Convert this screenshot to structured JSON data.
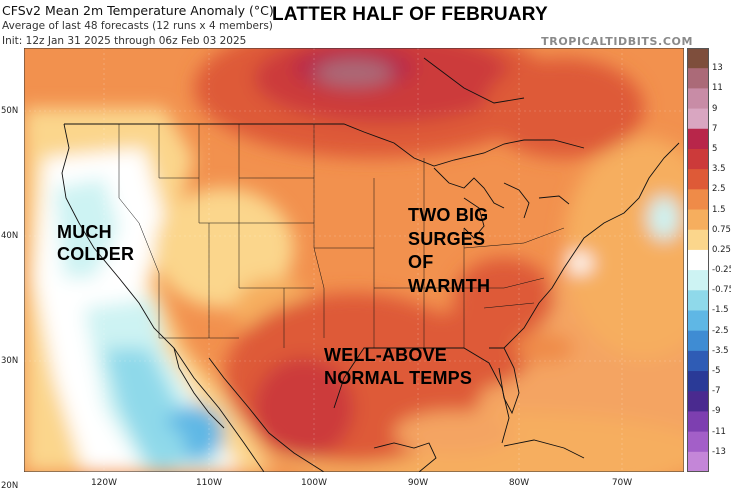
{
  "header": {
    "title": "CFSv2 Mean 2m Temperature Anomaly (°C)",
    "subtitle": "Average of last 48 forecasts (12 runs x 4 members)",
    "init": "Init: 12z Jan 31 2025 through 06z Feb 03 2025",
    "overlay_title": "LATTER HALF OF FEBRUARY",
    "brand": "TROPICALTIDBITS.COM"
  },
  "map": {
    "lat_labels": [
      "50N",
      "40N",
      "30N",
      "20N"
    ],
    "lon_labels": [
      "120W",
      "110W",
      "100W",
      "90W",
      "80W",
      "70W"
    ],
    "annotations": {
      "colder": [
        "MUCH",
        "COLDER"
      ],
      "warmth": [
        "TWO BIG",
        "SURGES",
        "OF",
        "WARMTH"
      ],
      "normal": [
        "WELL-ABOVE",
        "NORMAL TEMPS"
      ]
    }
  },
  "colorbar": {
    "labels": [
      "13",
      "11",
      "9",
      "7",
      "5",
      "3.5",
      "2.5",
      "1.5",
      "0.75",
      "0.25",
      "-0.25",
      "-0.75",
      "-1.5",
      "-2.5",
      "-3.5",
      "-5",
      "-7",
      "-9",
      "-11",
      "-13"
    ],
    "colors": [
      "#7e4e3c",
      "#ab6a78",
      "#c88ca6",
      "#d9a6c1",
      "#b8264a",
      "#cc3a3a",
      "#de5a37",
      "#ef8b48",
      "#f6ae5e",
      "#fbd68c",
      "#ffffff",
      "#cdf3f3",
      "#8fd9ea",
      "#5fb7e5",
      "#3f8cd3",
      "#2f5cb5",
      "#2a3a97",
      "#4a2a8f",
      "#7d3fb0",
      "#a35fc8",
      "#c486d8"
    ]
  }
}
